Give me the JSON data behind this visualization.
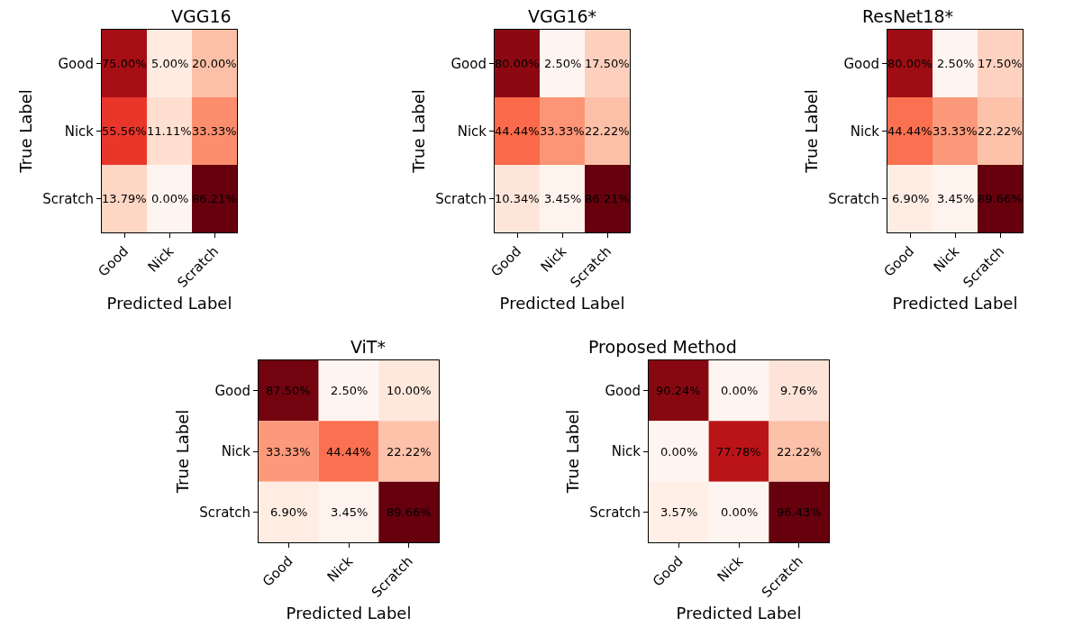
{
  "chart_data": [
    {
      "type": "heatmap",
      "title": "VGG16",
      "xlabel": "Predicted Label",
      "ylabel": "True Label",
      "categories": [
        "Good",
        "Nick",
        "Scratch"
      ],
      "y_categories": [
        "Good",
        "Nick",
        "Scratch"
      ],
      "cells": [
        [
          75.0,
          5.0,
          20.0
        ],
        [
          55.56,
          11.11,
          33.33
        ],
        [
          13.79,
          0.0,
          86.21
        ]
      ],
      "cell_labels": [
        [
          "75.00%",
          "5.00%",
          "20.00%"
        ],
        [
          "55.56%",
          "11.11%",
          "33.33%"
        ],
        [
          "13.79%",
          "0.00%",
          "86.21%"
        ]
      ]
    },
    {
      "type": "heatmap",
      "title": "VGG16*",
      "xlabel": "Predicted Label",
      "ylabel": "True Label",
      "categories": [
        "Good",
        "Nick",
        "Scratch"
      ],
      "y_categories": [
        "Good",
        "Nick",
        "Scratch"
      ],
      "cells": [
        [
          80.0,
          2.5,
          17.5
        ],
        [
          44.44,
          33.33,
          22.22
        ],
        [
          10.34,
          3.45,
          86.21
        ]
      ],
      "cell_labels": [
        [
          "80.00%",
          "2.50%",
          "17.50%"
        ],
        [
          "44.44%",
          "33.33%",
          "22.22%"
        ],
        [
          "10.34%",
          "3.45%",
          "86.21%"
        ]
      ]
    },
    {
      "type": "heatmap",
      "title": "ResNet18*",
      "xlabel": "Predicted Label",
      "ylabel": "True Label",
      "categories": [
        "Good",
        "Nick",
        "Scratch"
      ],
      "y_categories": [
        "Good",
        "Nick",
        "Scratch"
      ],
      "cells": [
        [
          80.0,
          2.5,
          17.5
        ],
        [
          44.44,
          33.33,
          22.22
        ],
        [
          6.9,
          3.45,
          89.66
        ]
      ],
      "cell_labels": [
        [
          "80.00%",
          "2.50%",
          "17.50%"
        ],
        [
          "44.44%",
          "33.33%",
          "22.22%"
        ],
        [
          "6.90%",
          "3.45%",
          "89.66%"
        ]
      ]
    },
    {
      "type": "heatmap",
      "title": "ViT*",
      "xlabel": "Predicted Label",
      "ylabel": "True Label",
      "categories": [
        "Good",
        "Nick",
        "Scratch"
      ],
      "y_categories": [
        "Good",
        "Nick",
        "Scratch"
      ],
      "cells": [
        [
          87.5,
          2.5,
          10.0
        ],
        [
          33.33,
          44.44,
          22.22
        ],
        [
          6.9,
          3.45,
          89.66
        ]
      ],
      "cell_labels": [
        [
          "87.50%",
          "2.50%",
          "10.00%"
        ],
        [
          "33.33%",
          "44.44%",
          "22.22%"
        ],
        [
          "6.90%",
          "3.45%",
          "89.66%"
        ]
      ]
    },
    {
      "type": "heatmap",
      "title": "Proposed Method",
      "xlabel": "Predicted Label",
      "ylabel": "True Label",
      "categories": [
        "Good",
        "Nick",
        "Scratch"
      ],
      "y_categories": [
        "Good",
        "Nick",
        "Scratch"
      ],
      "cells": [
        [
          90.24,
          0.0,
          9.76
        ],
        [
          0.0,
          77.78,
          22.22
        ],
        [
          3.57,
          0.0,
          96.43
        ]
      ],
      "cell_labels": [
        [
          "90.24%",
          "0.00%",
          "9.76%"
        ],
        [
          "0.00%",
          "77.78%",
          "22.22%"
        ],
        [
          "3.57%",
          "0.00%",
          "96.43%"
        ]
      ]
    }
  ]
}
